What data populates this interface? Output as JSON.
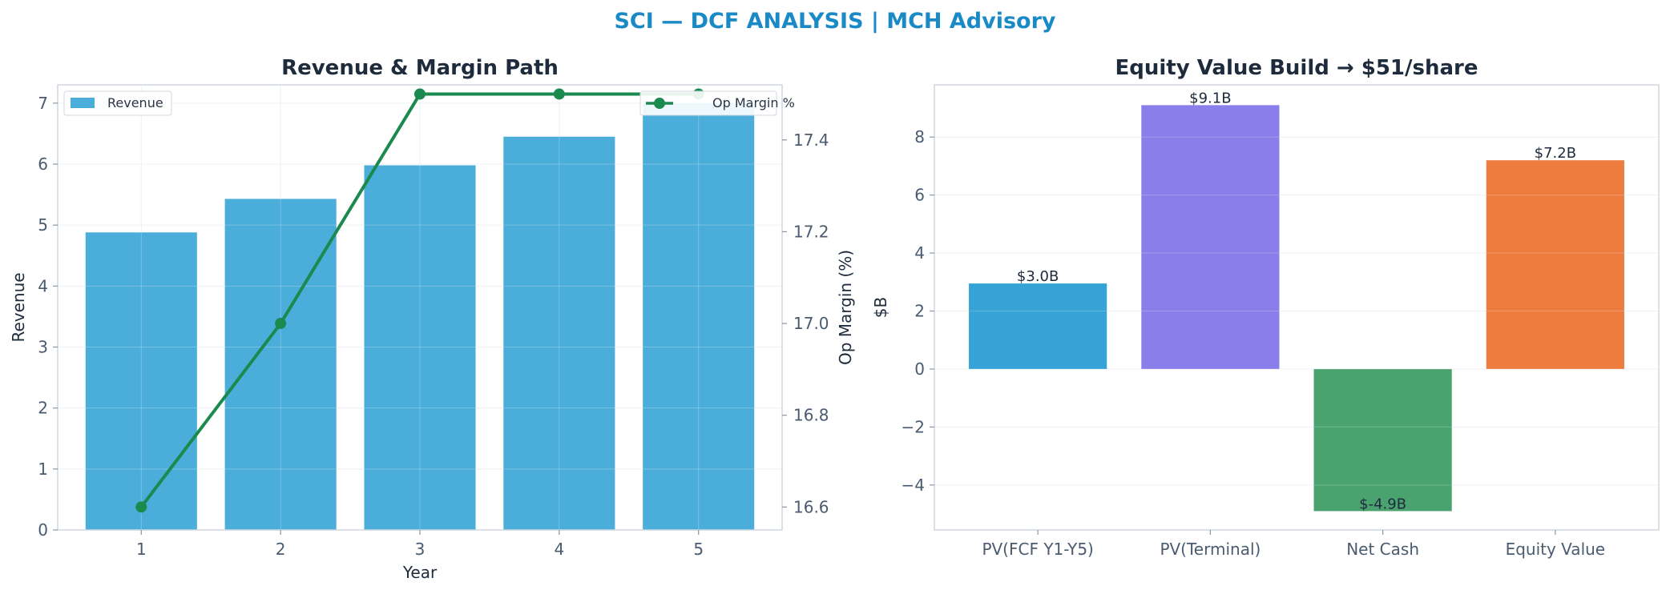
{
  "suptitle": "SCI — DCF ANALYSIS | MCH Advisory",
  "colors": {
    "title": "#1a8ac6",
    "revenue_bar": "#4badd9",
    "margin_line": "#1a8a4f",
    "pv_fcf": "#35a3d5",
    "pv_terminal": "#8a7eea",
    "net_cash": "#4aa36f",
    "equity_value": "#ed7c3f"
  },
  "chart_data": [
    {
      "type": "bar+line",
      "title": "Revenue & Margin Path",
      "xlabel": "Year",
      "ylabel": "Revenue",
      "y2label": "Op Margin (%)",
      "categories": [
        "1",
        "2",
        "3",
        "4",
        "5"
      ],
      "series": [
        {
          "name": "Revenue",
          "type": "bar",
          "axis": "left",
          "values": [
            4.88,
            5.43,
            5.98,
            6.45,
            7.0
          ]
        },
        {
          "name": "Op Margin %",
          "type": "line",
          "axis": "right",
          "values": [
            16.6,
            17.0,
            17.5,
            17.5,
            17.5
          ]
        }
      ],
      "ylim": [
        0,
        7.3
      ],
      "y2lim": [
        16.55,
        17.52
      ],
      "yticks": [
        "0",
        "1",
        "2",
        "3",
        "4",
        "5",
        "6",
        "7"
      ],
      "y2ticks": [
        "16.6",
        "16.8",
        "17.0",
        "17.2",
        "17.4"
      ],
      "legend_left": "Revenue",
      "legend_right": "Op Margin %",
      "grid": true,
      "legend": "upper-left and upper-right"
    },
    {
      "type": "bar",
      "title": "Equity Value Build → $51/share",
      "xlabel": "",
      "ylabel": "$B",
      "categories": [
        "PV(FCF Y1-Y5)",
        "PV(Terminal)",
        "Net Cash",
        "Equity Value"
      ],
      "values": [
        2.95,
        9.1,
        -4.9,
        7.2
      ],
      "labels": [
        "$3.0B",
        "$9.1B",
        "$-4.9B",
        "$7.2B"
      ],
      "ylim": [
        -5.55,
        9.8
      ],
      "yticks": [
        "−4",
        "−2",
        "0",
        "2",
        "4",
        "6",
        "8"
      ],
      "grid": true
    }
  ]
}
